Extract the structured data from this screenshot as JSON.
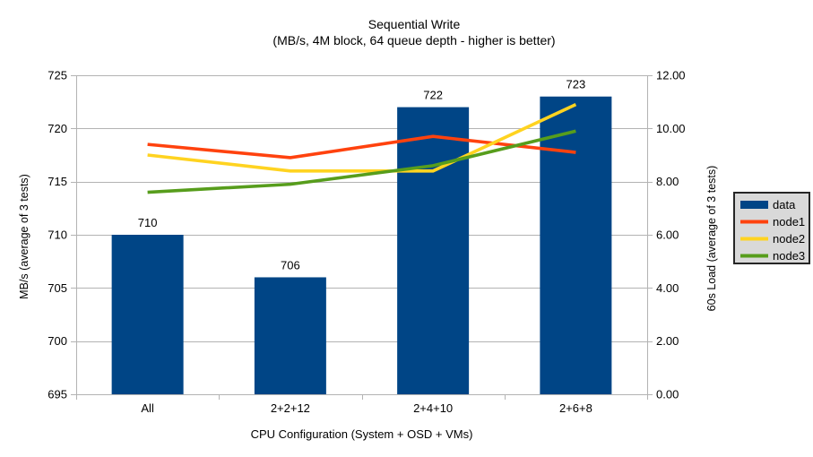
{
  "title": {
    "line1": "Sequential Write",
    "line2": "(MB/s, 4M block, 64 queue depth - higher is better)"
  },
  "chart_data": {
    "type": "combo-bar-line",
    "categories": [
      "All",
      "2+2+12",
      "2+4+10",
      "2+6+8"
    ],
    "bar_series": {
      "name": "data",
      "axis": "left",
      "values": [
        710,
        706,
        722,
        723
      ],
      "data_labels": [
        "710",
        "706",
        "722",
        "723"
      ],
      "color": "#004586"
    },
    "line_series": [
      {
        "name": "node1",
        "axis": "right",
        "values": [
          9.4,
          8.9,
          9.7,
          9.1
        ],
        "color": "#FF420E"
      },
      {
        "name": "node2",
        "axis": "right",
        "values": [
          9.0,
          8.4,
          8.4,
          10.9
        ],
        "color": "#FFD320"
      },
      {
        "name": "node3",
        "axis": "right",
        "values": [
          7.6,
          7.9,
          8.6,
          9.9
        ],
        "color": "#579D1C"
      }
    ],
    "left_axis": {
      "title": "MB/s (average of 3 tests)",
      "min": 695,
      "max": 725,
      "step": 5,
      "tick_labels": [
        "695",
        "700",
        "705",
        "710",
        "715",
        "720",
        "725"
      ]
    },
    "right_axis": {
      "title": "60s Load (average of 3 tests)",
      "min": 0,
      "max": 12,
      "step": 2,
      "tick_labels": [
        "0.00",
        "2.00",
        "4.00",
        "6.00",
        "8.00",
        "10.00",
        "12.00"
      ]
    },
    "x_axis": {
      "title": "CPU Configuration (System + OSD + VMs)"
    },
    "grid": true,
    "legend": {
      "position": "right",
      "background": "#D9D9D9",
      "border": "#262626",
      "items": [
        {
          "label": "data",
          "swatch": "rect",
          "color": "#004586"
        },
        {
          "label": "node1",
          "swatch": "line",
          "color": "#FF420E"
        },
        {
          "label": "node2",
          "swatch": "line",
          "color": "#FFD320"
        },
        {
          "label": "node3",
          "swatch": "line",
          "color": "#579D1C"
        }
      ]
    },
    "colors": {
      "grid": "#B3B3B3",
      "axis": "#B3B3B3",
      "text": "#000000",
      "background": "#FFFFFF"
    }
  }
}
